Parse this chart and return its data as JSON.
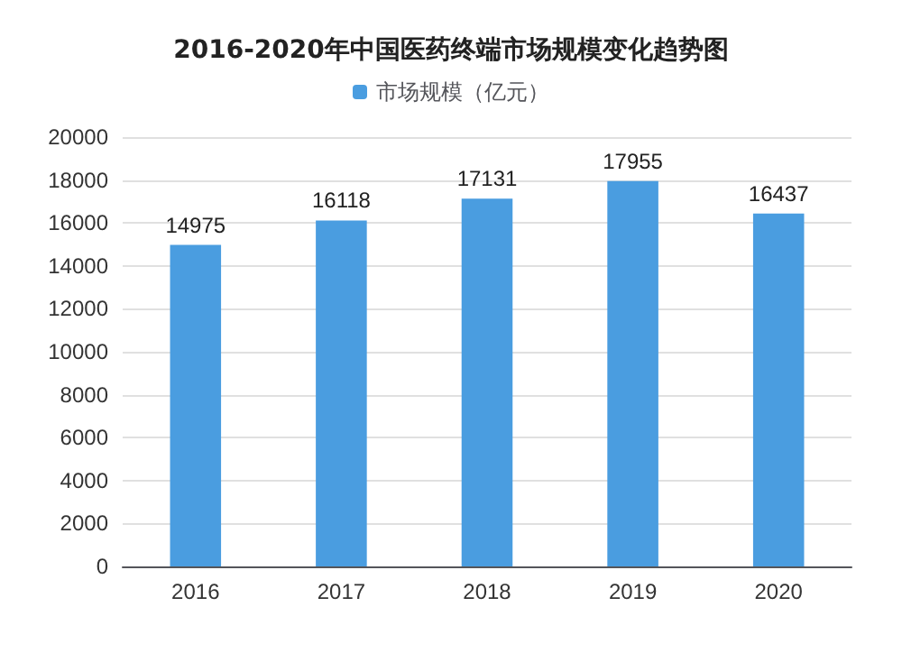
{
  "chart_data": {
    "type": "bar",
    "title": "2016-2020年中国医药终端市场规模变化趋势图",
    "categories": [
      "2016",
      "2017",
      "2018",
      "2019",
      "2020"
    ],
    "series": [
      {
        "name": "市场规模（亿元）",
        "color": "#4a9de0",
        "values": [
          14975,
          16118,
          17131,
          17955,
          16437
        ]
      }
    ],
    "ylim": [
      0,
      20000
    ],
    "yticks": [
      0,
      2000,
      4000,
      6000,
      8000,
      10000,
      12000,
      14000,
      16000,
      18000,
      20000
    ],
    "grid": "y",
    "legend": "top",
    "data_labels": true
  }
}
